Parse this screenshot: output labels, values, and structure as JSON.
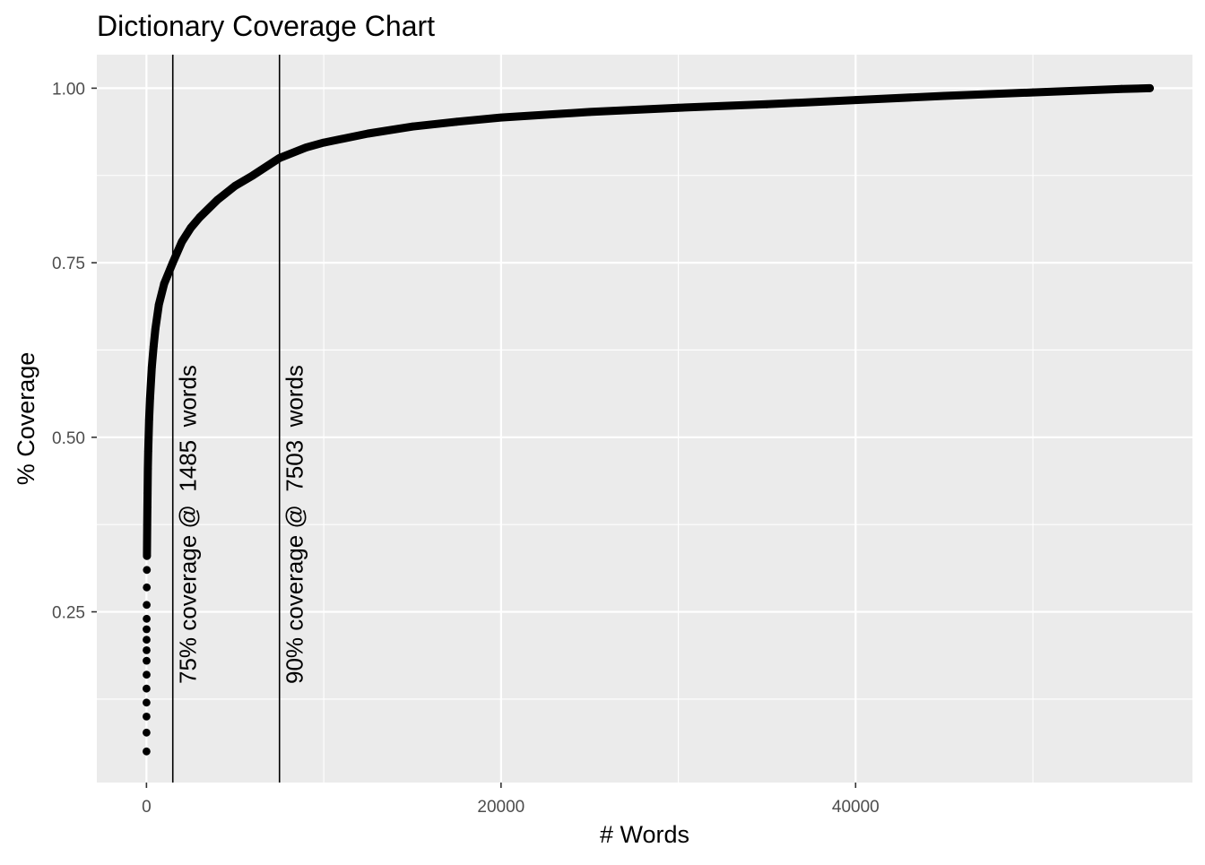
{
  "chart_data": {
    "type": "scatter",
    "title": "Dictionary Coverage Chart",
    "xlabel": "# Words",
    "ylabel": "% Coverage",
    "xlim": [
      -2800,
      59000
    ],
    "ylim": [
      0.0055,
      1.048
    ],
    "x_ticks": [
      0,
      20000,
      40000
    ],
    "x_tick_labels": [
      "0",
      "20000",
      "40000"
    ],
    "x_minor_ticks": [
      10000,
      30000,
      50000
    ],
    "y_ticks": [
      0.25,
      0.5,
      0.75,
      1.0
    ],
    "y_tick_labels": [
      "0.25",
      "0.50",
      "0.75",
      "1.00"
    ],
    "y_minor_ticks": [
      0.125,
      0.375,
      0.625,
      0.875
    ],
    "grid": true,
    "panel_background": "#ebebeb",
    "grid_color": "#ffffff",
    "point_color": "#000000",
    "total_words": 56600,
    "series": [
      {
        "x": [
          0,
          1,
          2,
          3,
          4,
          5,
          6,
          7,
          8,
          9,
          10,
          12,
          15,
          20,
          25,
          30,
          40,
          50,
          60,
          80,
          100,
          150,
          200,
          300,
          400,
          500,
          700,
          1000,
          1485,
          2000,
          2500,
          3000,
          4000,
          5000,
          6000,
          7503,
          9000,
          10000,
          12500,
          15000,
          17500,
          20000,
          25000,
          30000,
          35000,
          40000,
          45000,
          50000,
          55000,
          56600
        ],
        "y": [
          0.05,
          0.077,
          0.1,
          0.12,
          0.14,
          0.16,
          0.18,
          0.195,
          0.21,
          0.225,
          0.24,
          0.26,
          0.285,
          0.31,
          0.33,
          0.345,
          0.375,
          0.4,
          0.42,
          0.455,
          0.48,
          0.525,
          0.555,
          0.6,
          0.63,
          0.655,
          0.69,
          0.72,
          0.75,
          0.78,
          0.8,
          0.815,
          0.84,
          0.86,
          0.875,
          0.9,
          0.915,
          0.922,
          0.935,
          0.945,
          0.952,
          0.958,
          0.966,
          0.972,
          0.977,
          0.983,
          0.989,
          0.994,
          0.999,
          1.0
        ]
      }
    ],
    "vlines": [
      {
        "x": 1485,
        "label": "75% coverage @  1485  words"
      },
      {
        "x": 7503,
        "label": "90% coverage @  7503  words"
      }
    ]
  }
}
